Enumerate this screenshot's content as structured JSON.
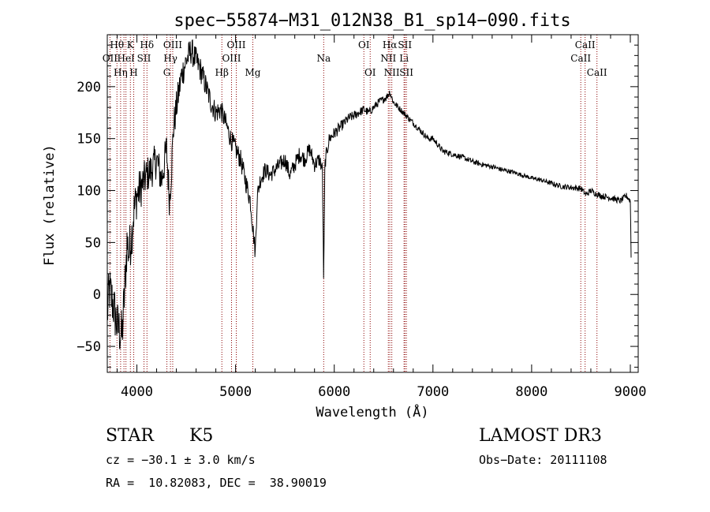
{
  "chart_data": {
    "type": "line",
    "title": "spec−55874−M31_012N38_B1_sp14−090.fits",
    "xlabel": "Wavelength (Å)",
    "ylabel": "Flux (relative)",
    "xlim": [
      3700,
      9080
    ],
    "ylim": [
      -75,
      250
    ],
    "xticks": [
      4000,
      5000,
      6000,
      7000,
      8000,
      9000
    ],
    "yticks": [
      -50,
      0,
      50,
      100,
      150,
      200
    ],
    "xtick_labels": [
      "4000",
      "5000",
      "6000",
      "7000",
      "8000",
      "9000"
    ],
    "ytick_labels": [
      "−50",
      "0",
      "50",
      "100",
      "150",
      "200"
    ],
    "series": [
      {
        "name": "flux",
        "anchors_x": [
          3700,
          3720,
          3760,
          3800,
          3850,
          3880,
          3900,
          3920,
          3950,
          3970,
          4000,
          4050,
          4100,
          4150,
          4200,
          4250,
          4300,
          4330,
          4350,
          4370,
          4400,
          4450,
          4500,
          4550,
          4600,
          4650,
          4700,
          4750,
          4800,
          4850,
          4900,
          4950,
          5000,
          5050,
          5100,
          5150,
          5180,
          5200,
          5220,
          5250,
          5300,
          5350,
          5400,
          5450,
          5500,
          5550,
          5600,
          5650,
          5700,
          5750,
          5800,
          5850,
          5880,
          5893,
          5905,
          5920,
          5950,
          6000,
          6050,
          6100,
          6150,
          6200,
          6250,
          6300,
          6350,
          6400,
          6450,
          6500,
          6530,
          6563,
          6580,
          6600,
          6650,
          6700,
          6750,
          6800,
          6850,
          6900,
          6950,
          7000,
          7100,
          7200,
          7300,
          7400,
          7500,
          7600,
          7700,
          7800,
          7900,
          8000,
          8100,
          8200,
          8300,
          8400,
          8500,
          8550,
          8600,
          8650,
          8700,
          8800,
          8900,
          8960,
          9000,
          9005,
          9010
        ],
        "anchors_y": [
          -20,
          5,
          -10,
          -30,
          -40,
          10,
          50,
          40,
          60,
          80,
          95,
          105,
          115,
          120,
          130,
          110,
          140,
          90,
          120,
          160,
          180,
          210,
          225,
          235,
          225,
          215,
          200,
          185,
          175,
          178,
          165,
          150,
          140,
          130,
          110,
          90,
          60,
          40,
          95,
          110,
          120,
          115,
          120,
          125,
          130,
          115,
          125,
          135,
          130,
          140,
          125,
          130,
          120,
          10,
          125,
          135,
          150,
          155,
          160,
          165,
          170,
          172,
          175,
          178,
          175,
          180,
          185,
          188,
          190,
          195,
          190,
          185,
          180,
          175,
          170,
          165,
          160,
          155,
          150,
          150,
          138,
          135,
          132,
          128,
          125,
          123,
          120,
          118,
          115,
          112,
          110,
          107,
          104,
          103,
          102,
          96,
          100,
          97,
          95,
          93,
          90,
          95,
          90,
          60,
          20
        ],
        "noise_x": [
          3700,
          3900,
          4100,
          4300,
          4500,
          4700,
          4900,
          5100,
          5300,
          5500,
          5700,
          5900,
          6100,
          6400,
          6700,
          7000,
          8000,
          8500,
          9000
        ],
        "noise_amp": [
          25,
          25,
          18,
          18,
          14,
          12,
          10,
          10,
          8,
          8,
          8,
          7,
          5,
          4,
          3,
          3,
          2,
          3,
          3
        ]
      }
    ],
    "lines": [
      {
        "w": 3727,
        "label": "OII",
        "row": 1
      },
      {
        "w": 3798,
        "label": "Hθ",
        "row": 0
      },
      {
        "w": 3835,
        "label": "Hη",
        "row": 2
      },
      {
        "w": 3869,
        "label": "",
        "row": -1
      },
      {
        "w": 3889,
        "label": "HeI",
        "row": 1
      },
      {
        "w": 3934,
        "label": "K",
        "row": 0
      },
      {
        "w": 3968,
        "label": "H",
        "row": 2
      },
      {
        "w": 4072,
        "label": "SII",
        "row": 1
      },
      {
        "w": 4102,
        "label": "Hδ",
        "row": 0
      },
      {
        "w": 4304,
        "label": "G",
        "row": 2
      },
      {
        "w": 4340,
        "label": "Hγ",
        "row": 1
      },
      {
        "w": 4363,
        "label": "OIII",
        "row": 0
      },
      {
        "w": 4861,
        "label": "Hβ",
        "row": 2
      },
      {
        "w": 4959,
        "label": "OIII",
        "row": 1
      },
      {
        "w": 5007,
        "label": "OIII",
        "row": 0
      },
      {
        "w": 5175,
        "label": "Mg",
        "row": 2
      },
      {
        "w": 5893,
        "label": "Na",
        "row": 1
      },
      {
        "w": 6300,
        "label": "OI",
        "row": 0
      },
      {
        "w": 6364,
        "label": "OI",
        "row": 2
      },
      {
        "w": 6548,
        "label": "NII",
        "row": 1
      },
      {
        "w": 6563,
        "label": "Hα",
        "row": 0
      },
      {
        "w": 6583,
        "label": "NII",
        "row": 2
      },
      {
        "w": 6707,
        "label": "Li",
        "row": 1
      },
      {
        "w": 6716,
        "label": "SII",
        "row": 0
      },
      {
        "w": 6731,
        "label": "SII",
        "row": 2
      },
      {
        "w": 8498,
        "label": "CaII",
        "row": 1
      },
      {
        "w": 8542,
        "label": "CaII",
        "row": 0
      },
      {
        "w": 8662,
        "label": "CaII",
        "row": 2
      }
    ],
    "line_color": "#8b0000"
  },
  "info": {
    "class": "STAR",
    "subclass": "K5",
    "survey": "LAMOST DR3",
    "cz": "cz = −30.1 ± 3.0 km/s",
    "obs_date": "Obs−Date: 20111108",
    "coords": "RA =  10.82083, DEC =  38.90019"
  }
}
